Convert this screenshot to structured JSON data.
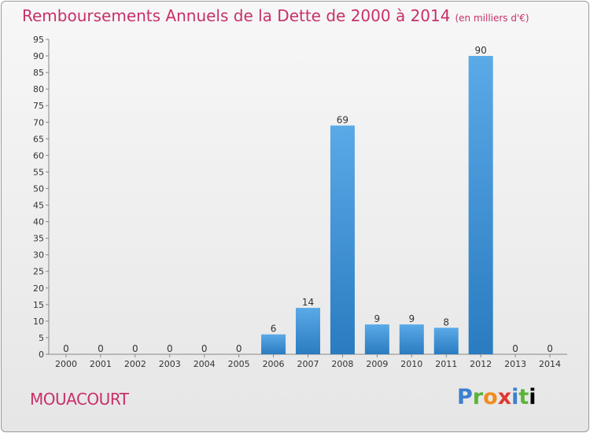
{
  "chart_data": {
    "type": "bar",
    "title": "Remboursements Annuels de la Dette de 2000 à 2014",
    "unit": "(en milliers d'€)",
    "categories": [
      "2000",
      "2001",
      "2002",
      "2003",
      "2004",
      "2005",
      "2006",
      "2007",
      "2008",
      "2009",
      "2010",
      "2011",
      "2012",
      "2013",
      "2014"
    ],
    "values": [
      0,
      0,
      0,
      0,
      0,
      0,
      6,
      14,
      69,
      9,
      9,
      8,
      90,
      0,
      0
    ],
    "ylim": [
      0,
      95
    ],
    "yticks": [
      0,
      5,
      10,
      15,
      20,
      25,
      30,
      35,
      40,
      45,
      50,
      55,
      60,
      65,
      70,
      75,
      80,
      85,
      90,
      95
    ],
    "grid": false,
    "bar_color_top": "#5aaae8",
    "bar_color_bottom": "#2a7bc0"
  },
  "commune": "MOUACOURT",
  "logo": {
    "letters": [
      "P",
      "r",
      "o",
      "x",
      "i",
      "t",
      "i"
    ],
    "text": "Proxiti"
  }
}
